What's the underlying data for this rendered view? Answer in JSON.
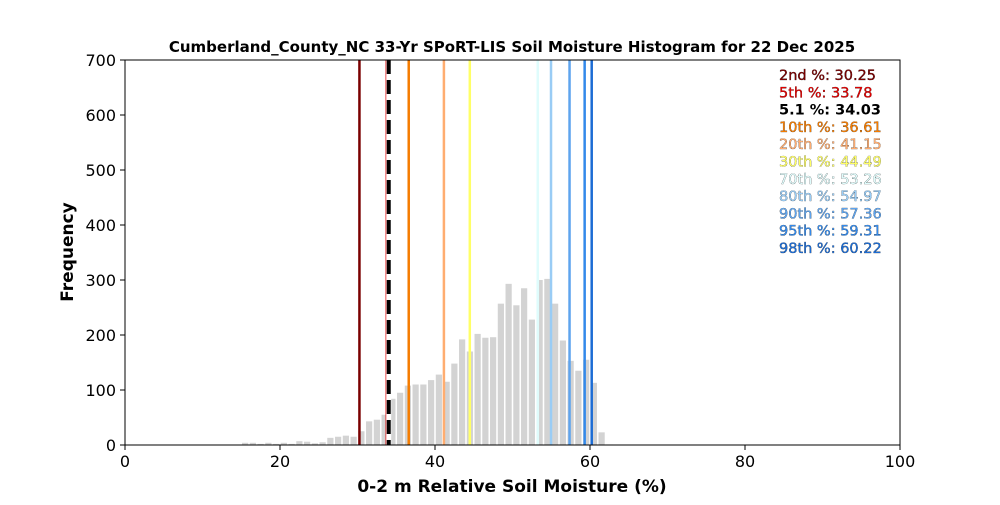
{
  "chart_data": {
    "type": "bar",
    "title": "Cumberland_County_NC 33-Yr SPoRT-LIS Soil Moisture Histogram for 22 Dec 2025",
    "xlabel": "0-2 m Relative Soil Moisture (%)",
    "ylabel": "Frequency",
    "xlim": [
      0,
      100
    ],
    "ylim": [
      0,
      700
    ],
    "xticks": [
      0,
      20,
      40,
      60,
      80,
      100
    ],
    "yticks": [
      0,
      100,
      200,
      300,
      400,
      500,
      600,
      700
    ],
    "grid": false,
    "bar_color": "#d3d3d3",
    "x": [
      15.5,
      16.5,
      17.5,
      18.5,
      19.5,
      20.5,
      21.5,
      22.5,
      23.5,
      24.5,
      25.5,
      26.5,
      27.5,
      28.5,
      29.5,
      30.5,
      31.5,
      32.5,
      33.5,
      34.5,
      35.5,
      36.5,
      37.5,
      38.5,
      39.5,
      40.5,
      41.5,
      42.5,
      43.5,
      44.5,
      45.5,
      46.5,
      47.5,
      48.5,
      49.5,
      50.5,
      51.5,
      52.5,
      53.5,
      54.5,
      55.5,
      56.5,
      57.5,
      58.5,
      59.5,
      60.5,
      61.5,
      62.5
    ],
    "values": [
      4,
      4,
      2,
      4,
      2,
      4,
      2,
      7,
      6,
      3,
      5,
      13,
      15,
      17,
      15,
      25,
      43,
      46,
      55,
      84,
      95,
      108,
      110,
      110,
      118,
      128,
      115,
      148,
      192,
      170,
      202,
      195,
      196,
      257,
      293,
      254,
      285,
      228,
      300,
      302,
      257,
      190,
      153,
      135,
      155,
      113,
      23,
      1
    ],
    "percentiles": [
      {
        "label": "2nd %: 30.25",
        "value": 30.25,
        "color": "#7a0000",
        "dashed": false
      },
      {
        "label": "5th %: 33.78",
        "value": 33.78,
        "color": "#e00000",
        "dashed": false
      },
      {
        "label": "5.1 %: 34.03",
        "value": 34.03,
        "color": "#000000",
        "dashed": true
      },
      {
        "label": "10th %: 36.61",
        "value": 36.61,
        "color": "#f57c00",
        "dashed": false
      },
      {
        "label": "20th %: 41.15",
        "value": 41.15,
        "color": "#ffad70",
        "dashed": false
      },
      {
        "label": "30th %: 44.49",
        "value": 44.49,
        "color": "#ffff66",
        "dashed": false
      },
      {
        "label": "70th %: 53.26",
        "value": 53.26,
        "color": "#dffcfc",
        "dashed": false
      },
      {
        "label": "80th %: 54.97",
        "value": 54.97,
        "color": "#99ccf5",
        "dashed": false
      },
      {
        "label": "90th %: 57.36",
        "value": 57.36,
        "color": "#5ea4ee",
        "dashed": false
      },
      {
        "label": "95th %: 59.31",
        "value": 59.31,
        "color": "#3389ea",
        "dashed": false
      },
      {
        "label": "98th %: 60.22",
        "value": 60.22,
        "color": "#1c6cd4",
        "dashed": false
      }
    ]
  }
}
